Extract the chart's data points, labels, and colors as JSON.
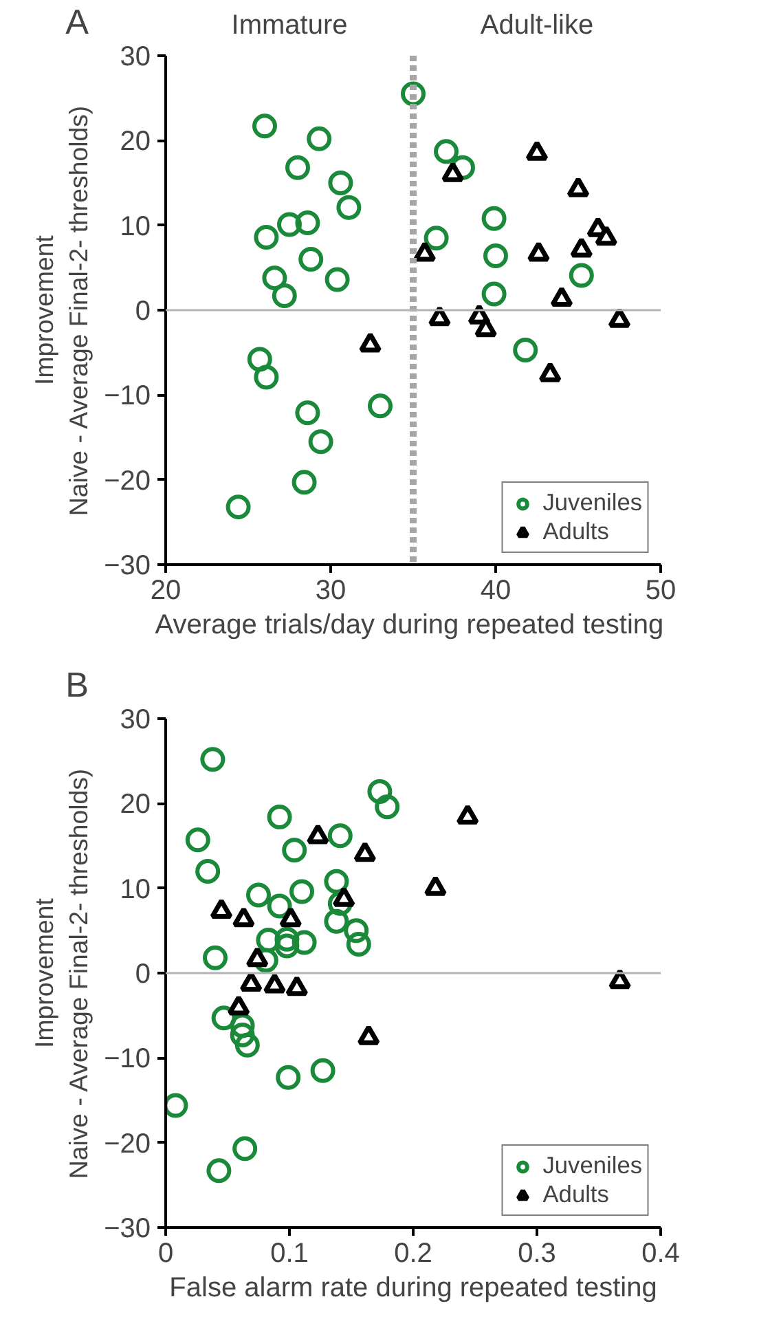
{
  "chart_data": [
    {
      "type": "scatter",
      "title": "A",
      "xlabel": "Average  trials/day during repeated testing",
      "ylabel": "Improvement\nNaive - Average Final-2- thresholds)",
      "xlim": [
        20,
        50
      ],
      "xticks": [
        20,
        30,
        40,
        50
      ],
      "ylim": [
        -30,
        30
      ],
      "yticks": [
        -30,
        -20,
        -10,
        0,
        10,
        20,
        30
      ],
      "grid": false,
      "legend": "bottom right",
      "ref_lines": [
        {
          "axis": "x",
          "value": 35,
          "color": "#a6a6a6",
          "line_style": "dashed"
        },
        {
          "axis": "y",
          "value": 0,
          "color": "#b3b3b3",
          "line_style": "solid"
        }
      ],
      "annotations": [
        "Immature",
        "Adult-like"
      ],
      "series": [
        {
          "name": "Juveniles",
          "color": "#1a8a3a",
          "marker": "circle",
          "x": [
            35,
            26,
            29.3,
            28,
            30.6,
            31.1,
            26.1,
            27.5,
            28.6,
            26.6,
            27.2,
            28.8,
            30.4,
            25.7,
            26.1,
            28.6,
            29.4,
            28.4,
            24.4,
            33,
            37,
            38,
            36.4,
            39.9,
            40,
            39.9,
            41.8,
            45.2
          ],
          "values": [
            25.5,
            21.7,
            20.2,
            16.8,
            15,
            12.1,
            8.6,
            10.1,
            10.3,
            3.8,
            1.7,
            6,
            3.6,
            -5.8,
            -7.9,
            -12.1,
            -15.5,
            -20.3,
            -23.2,
            -11.3,
            18.7,
            16.8,
            8.5,
            10.8,
            6.4,
            1.9,
            -4.7,
            4.1
          ]
        },
        {
          "name": "Adults",
          "color": "#000000",
          "marker": "triangle",
          "x": [
            32.4,
            35.7,
            37.4,
            36.6,
            39.0,
            39.4,
            42.5,
            42.6,
            43.3,
            44.0,
            45.0,
            45.2,
            46.2,
            46.7,
            47.5
          ],
          "values": [
            -4.1,
            6.6,
            16,
            -1,
            -0.8,
            -2.3,
            18.5,
            6.6,
            -7.6,
            1.3,
            14.2,
            7.1,
            9.5,
            8.5,
            -1.2
          ]
        }
      ]
    },
    {
      "type": "scatter",
      "title": "B",
      "xlabel": "False alarm rate during repeated testing",
      "ylabel": "Improvement\nNaive - Average Final-2- thresholds)",
      "xlim": [
        0,
        0.4
      ],
      "xticks": [
        0,
        0.1,
        0.2,
        0.3,
        0.4
      ],
      "ylim": [
        -30,
        30
      ],
      "yticks": [
        -30,
        -20,
        -10,
        0,
        10,
        20,
        30
      ],
      "grid": false,
      "legend": "bottom right",
      "ref_lines": [
        {
          "axis": "y",
          "value": 0,
          "color": "#b3b3b3",
          "line_style": "solid"
        }
      ],
      "series": [
        {
          "name": "Juveniles",
          "color": "#1a8a3a",
          "marker": "circle",
          "x": [
            0.038,
            0.026,
            0.034,
            0.04,
            0.092,
            0.104,
            0.075,
            0.092,
            0.11,
            0.083,
            0.098,
            0.098,
            0.112,
            0.081,
            0.141,
            0.173,
            0.179,
            0.138,
            0.141,
            0.138,
            0.154,
            0.156,
            0.047,
            0.062,
            0.062,
            0.066,
            0.099,
            0.127,
            0.008,
            0.043,
            0.064
          ],
          "values": [
            25.2,
            15.7,
            12.0,
            1.8,
            18.4,
            14.5,
            9.2,
            7.9,
            9.6,
            3.9,
            4.0,
            3.2,
            3.6,
            1.5,
            16.2,
            21.4,
            19.6,
            10.8,
            8.2,
            6.1,
            5.0,
            3.4,
            -5.3,
            -6.2,
            -7.3,
            -8.5,
            -12.3,
            -11.5,
            -15.6,
            -23.3,
            -20.7
          ]
        },
        {
          "name": "Adults",
          "color": "#000000",
          "marker": "triangle",
          "x": [
            0.045,
            0.063,
            0.101,
            0.123,
            0.161,
            0.144,
            0.218,
            0.244,
            0.074,
            0.069,
            0.088,
            0.106,
            0.059,
            0.164,
            0.367
          ],
          "values": [
            7.3,
            6.3,
            6.3,
            16.1,
            14.0,
            8.7,
            10.0,
            18.4,
            1.6,
            -1.3,
            -1.5,
            -1.8,
            -4.1,
            -7.6,
            -1.0
          ]
        }
      ]
    }
  ]
}
